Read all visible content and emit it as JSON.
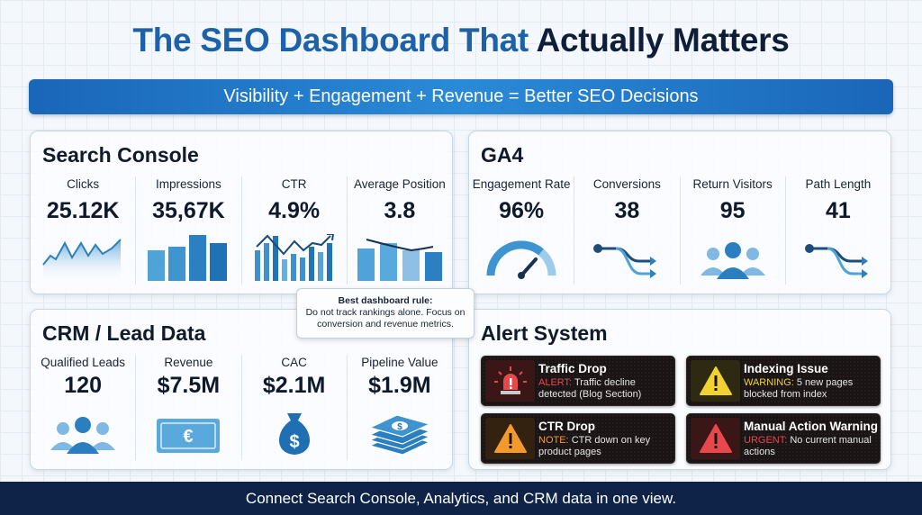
{
  "title": {
    "part1": "The SEO Dashboard That",
    "part2": "Actually Matters"
  },
  "banner": "Visibility + Engagement + Revenue = Better SEO Decisions",
  "search_console": {
    "title": "Search Console",
    "metrics": [
      {
        "label": "Clicks",
        "value": "25.12K",
        "chart": "area-line"
      },
      {
        "label": "Impressions",
        "value": "35,67K",
        "chart": "bars"
      },
      {
        "label": "CTR",
        "value": "4.9%",
        "chart": "bars-trend-up"
      },
      {
        "label": "Average Position",
        "value": "3.8",
        "chart": "bars-trend-down"
      }
    ]
  },
  "ga4": {
    "title": "GA4",
    "metrics": [
      {
        "label": "Engagement Rate",
        "value": "96%",
        "icon": "gauge-icon"
      },
      {
        "label": "Conversions",
        "value": "38",
        "icon": "path-split-icon"
      },
      {
        "label": "Return Visitors",
        "value": "95",
        "icon": "users-icon"
      },
      {
        "label": "Path Length",
        "value": "41",
        "icon": "path-split-icon"
      }
    ]
  },
  "crm": {
    "title": "CRM / Lead Data",
    "metrics": [
      {
        "label": "Qualified Leads",
        "value": "120",
        "icon": "users-icon"
      },
      {
        "label": "Revenue",
        "value": "$7.5M",
        "icon": "euro-banknote-icon"
      },
      {
        "label": "CAC",
        "value": "$2.1M",
        "icon": "money-bag-icon"
      },
      {
        "label": "Pipeline Value",
        "value": "$1.9M",
        "icon": "cash-stack-icon"
      }
    ]
  },
  "tooltip": {
    "heading": "Best dashboard rule:",
    "text": "Do not track rankings alone. Focus on conversion and revenue metrics."
  },
  "alerts": {
    "title": "Alert System",
    "items": [
      {
        "title": "Traffic Drop",
        "tag": "ALERT:",
        "text": "Traffic decline detected (Blog Section)",
        "color": "#e8474c",
        "icon": "siren-icon"
      },
      {
        "title": "Indexing Issue",
        "tag": "WARNING:",
        "text": "5 new pages blocked from index",
        "color": "#f2d230",
        "icon": "warning-triangle-icon"
      },
      {
        "title": "CTR Drop",
        "tag": "NOTE:",
        "text": "CTR down on key product pages",
        "color": "#f39a2a",
        "icon": "warning-triangle-icon"
      },
      {
        "title": "Manual Action Warning",
        "tag": "URGENT:",
        "text": "No current manual actions",
        "color": "#e8474c",
        "icon": "warning-triangle-icon"
      }
    ]
  },
  "footer": "Connect Search Console, Analytics, and CRM data in one view."
}
